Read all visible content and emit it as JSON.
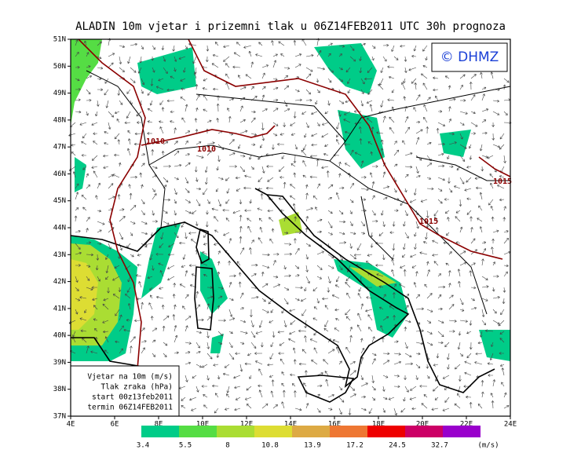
{
  "title": "ALADIN 10m vjetar i prizemni tlak u 06Z14FEB2011 UTC 30h prognoza",
  "logo": "© DHMZ",
  "lat_labels": [
    "37N",
    "38N",
    "39N",
    "40N",
    "41N",
    "42N",
    "43N",
    "44N",
    "45N",
    "46N",
    "47N",
    "48N",
    "49N",
    "50N",
    "51N"
  ],
  "lon_labels": [
    "4E",
    "6E",
    "8E",
    "10E",
    "12E",
    "14E",
    "16E",
    "18E",
    "20E",
    "22E",
    "24E"
  ],
  "isobar_labels": [
    "1010",
    "1010",
    "1015",
    "1015"
  ],
  "info_box": [
    "Vjetar na 10m (m/s)",
    "Tlak zraka (hPa)",
    "start 00z13feb2011",
    "termin 06Z14FEB2011"
  ],
  "colorbar": {
    "labels": [
      3.4,
      5.5,
      8,
      10.8,
      13.9,
      17.2,
      24.5,
      32.7
    ],
    "unit": "(m/s)",
    "colors": [
      "#00cc88",
      "#55dd44",
      "#aadd33",
      "#dddd33",
      "#ddaa44",
      "#ee7733",
      "#ee0000",
      "#cc0066",
      "#9900cc"
    ]
  }
}
